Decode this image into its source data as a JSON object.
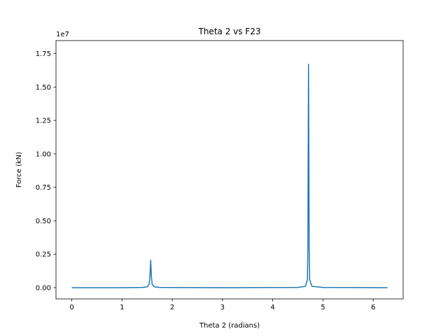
{
  "chart_data": {
    "type": "line",
    "title": "Theta 2 vs F23",
    "xlabel": "Theta 2 (radians)",
    "ylabel": "Force (kN)",
    "y_offset_label": "1e7",
    "y_multiplier": 10000000,
    "xlim": [
      -0.314,
      6.597
    ],
    "ylim": [
      -840000,
      18470000
    ],
    "x_ticks": [
      0,
      1,
      2,
      3,
      4,
      5,
      6
    ],
    "x_tick_labels": [
      "0",
      "1",
      "2",
      "3",
      "4",
      "5",
      "6"
    ],
    "y_ticks": [
      0,
      2500000,
      5000000,
      7500000,
      10000000,
      12500000,
      15000000,
      17500000
    ],
    "y_tick_labels": [
      "0.00",
      "0.25",
      "0.50",
      "0.75",
      "1.00",
      "1.25",
      "1.50",
      "1.75"
    ],
    "grid": false,
    "series": [
      {
        "color": "#1f77b4",
        "x": [
          0,
          1.0,
          1.4,
          1.5,
          1.54,
          1.555,
          1.565,
          1.5708,
          1.576,
          1.586,
          1.6,
          1.64,
          1.75,
          3.0,
          4.5,
          4.65,
          4.69,
          4.7,
          4.705,
          4.7124,
          4.72,
          4.725,
          4.735,
          4.78,
          5.0,
          6.2832
        ],
        "values": [
          0,
          0,
          15000,
          60000,
          250000,
          800000,
          1600000,
          2050000,
          1600000,
          800000,
          250000,
          60000,
          15000,
          0,
          15000,
          100000,
          600000,
          3000000,
          9000000,
          16700000,
          9000000,
          3000000,
          600000,
          100000,
          15000,
          0
        ]
      }
    ]
  }
}
